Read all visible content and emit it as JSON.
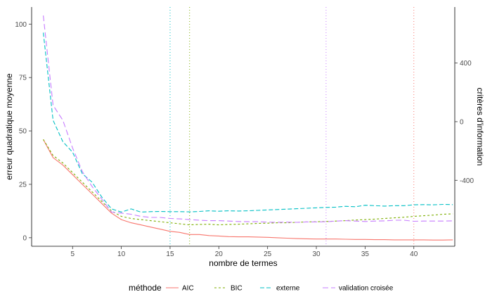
{
  "chart_data": {
    "type": "line",
    "xlabel": "nombre de termes",
    "ylabel": "erreur quadratique moyenne",
    "y2label": "critères d'information",
    "xlim": [
      0.8,
      44.2
    ],
    "xticks": [
      5,
      10,
      15,
      20,
      25,
      30,
      35,
      40
    ],
    "ylim": [
      -4,
      108
    ],
    "yticks": [
      0,
      25,
      50,
      75,
      100
    ],
    "y2lim": [
      -850,
      782
    ],
    "y2ticks": [
      -400,
      0,
      400
    ],
    "grid": false,
    "legend": {
      "title": "méthode",
      "position": "bottom"
    },
    "vlines": [
      {
        "x": 15,
        "color": "#00BFC4"
      },
      {
        "x": 17,
        "color": "#7CAE00"
      },
      {
        "x": 31,
        "color": "#C77CFF"
      },
      {
        "x": 40,
        "color": "#F8766D"
      }
    ],
    "series": [
      {
        "name": "AIC",
        "color": "#F8766D",
        "dash": "",
        "x": [
          2,
          3,
          4,
          5,
          6,
          7,
          8,
          9,
          10,
          11,
          12,
          13,
          14,
          15,
          16,
          17,
          18,
          19,
          20,
          21,
          22,
          23,
          24,
          25,
          26,
          27,
          28,
          29,
          30,
          31,
          32,
          33,
          34,
          35,
          36,
          37,
          38,
          39,
          40,
          41,
          42,
          43,
          44
        ],
        "y": [
          46.0,
          37.5,
          34.0,
          29.5,
          25.0,
          20.5,
          16.0,
          11.5,
          8.5,
          7.0,
          6.0,
          5.0,
          4.0,
          3.0,
          2.5,
          1.5,
          1.5,
          1.0,
          0.8,
          0.5,
          0.4,
          0.4,
          0.3,
          0.2,
          0.0,
          -0.2,
          -0.4,
          -0.5,
          -0.6,
          -0.6,
          -0.6,
          -0.7,
          -0.8,
          -0.8,
          -0.9,
          -0.9,
          -1.0,
          -1.0,
          -1.0,
          -1.0,
          -1.1,
          -1.1,
          -1.0
        ]
      },
      {
        "name": "BIC",
        "color": "#7CAE00",
        "dash": "3,3",
        "x": [
          2,
          3,
          4,
          5,
          6,
          7,
          8,
          9,
          10,
          11,
          12,
          13,
          14,
          15,
          16,
          17,
          18,
          19,
          20,
          21,
          22,
          23,
          24,
          25,
          26,
          27,
          28,
          29,
          30,
          31,
          32,
          33,
          34,
          35,
          36,
          37,
          38,
          39,
          40,
          41,
          42,
          43,
          44
        ],
        "y": [
          46.0,
          38.5,
          35.0,
          30.5,
          26.0,
          21.5,
          17.0,
          12.5,
          10.0,
          9.0,
          8.5,
          8.0,
          7.5,
          7.0,
          6.5,
          6.0,
          6.2,
          6.3,
          6.0,
          6.2,
          6.3,
          6.5,
          6.7,
          6.8,
          7.0,
          7.0,
          7.2,
          7.4,
          7.5,
          7.6,
          7.8,
          8.0,
          8.3,
          8.5,
          8.7,
          9.0,
          9.3,
          9.6,
          10.0,
          10.3,
          10.6,
          11.0,
          11.2
        ]
      },
      {
        "name": "externe",
        "color": "#00BFC4",
        "dash": "6,3",
        "x": [
          2,
          3,
          4,
          5,
          6,
          7,
          8,
          9,
          10,
          11,
          12,
          13,
          14,
          15,
          16,
          17,
          18,
          19,
          20,
          21,
          22,
          23,
          24,
          25,
          26,
          27,
          28,
          29,
          30,
          31,
          32,
          33,
          34,
          35,
          36,
          37,
          38,
          39,
          40,
          41,
          42,
          43,
          44
        ],
        "y": [
          96.0,
          55.0,
          45.0,
          40.0,
          30.0,
          26.0,
          19.0,
          13.5,
          12.0,
          13.5,
          12.0,
          12.2,
          12.3,
          12.2,
          12.2,
          12.1,
          12.3,
          12.6,
          12.4,
          12.6,
          12.5,
          12.6,
          12.8,
          13.0,
          13.2,
          13.4,
          13.6,
          13.8,
          14.0,
          14.2,
          14.3,
          14.7,
          14.5,
          15.2,
          15.0,
          14.8,
          15.0,
          15.0,
          15.4,
          15.5,
          15.4,
          15.6,
          15.5
        ]
      },
      {
        "name": "validation croisée",
        "color": "#C77CFF",
        "dash": "8,4",
        "x": [
          2,
          3,
          4,
          5,
          6,
          7,
          8,
          9,
          10,
          11,
          12,
          13,
          14,
          15,
          16,
          17,
          18,
          19,
          20,
          21,
          22,
          23,
          24,
          25,
          26,
          27,
          28,
          29,
          30,
          31,
          32,
          33,
          34,
          35,
          36,
          37,
          38,
          39,
          40,
          41,
          42,
          43,
          44
        ],
        "y": [
          104.0,
          62.0,
          55.0,
          42.0,
          31.0,
          24.0,
          18.0,
          12.0,
          11.5,
          11.0,
          10.0,
          9.5,
          9.5,
          9.0,
          8.8,
          8.5,
          8.2,
          8.0,
          8.0,
          7.8,
          7.6,
          7.5,
          7.5,
          7.3,
          7.2,
          7.3,
          7.2,
          7.4,
          7.4,
          7.5,
          7.8,
          8.0,
          7.8,
          7.6,
          7.8,
          7.9,
          8.2,
          8.2,
          7.7,
          7.8,
          7.8,
          7.8,
          7.9
        ]
      }
    ]
  }
}
